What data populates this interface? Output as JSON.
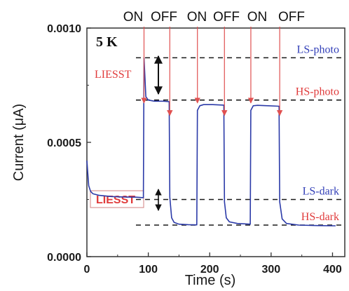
{
  "chart_data": {
    "type": "line",
    "xlabel": "Time (s)",
    "ylabel": "Current (μA)",
    "xlim": [
      0,
      420
    ],
    "ylim": [
      0.0,
      0.001
    ],
    "x_ticks": [
      0,
      100,
      200,
      300,
      400
    ],
    "y_ticks": [
      0.0,
      0.0005,
      0.001
    ],
    "x_tick_labels": [
      "0",
      "100",
      "200",
      "300",
      "400"
    ],
    "y_tick_labels": [
      "0.0000",
      "0.0005",
      "0.0010"
    ],
    "series": [
      {
        "color": "#2b3aa8",
        "points": [
          [
            0,
            0.00042
          ],
          [
            1,
            0.00038
          ],
          [
            3,
            0.00031
          ],
          [
            6,
            0.000285
          ],
          [
            10,
            0.000275
          ],
          [
            20,
            0.000268
          ],
          [
            40,
            0.000263
          ],
          [
            60,
            0.000261
          ],
          [
            80,
            0.00026
          ],
          [
            92,
            0.000258
          ],
          [
            93,
            0.00087
          ],
          [
            96,
            0.0007
          ],
          [
            100,
            0.000685
          ],
          [
            110,
            0.00068
          ],
          [
            125,
            0.00068
          ],
          [
            134,
            0.000678
          ],
          [
            135,
            0.00026
          ],
          [
            138,
            0.00017
          ],
          [
            142,
            0.00015
          ],
          [
            150,
            0.000142
          ],
          [
            165,
            0.00014
          ],
          [
            179,
            0.000139
          ],
          [
            180,
            0.00064
          ],
          [
            184,
            0.00066
          ],
          [
            190,
            0.000665
          ],
          [
            205,
            0.000665
          ],
          [
            223,
            0.000663
          ],
          [
            224,
            0.00024
          ],
          [
            227,
            0.00017
          ],
          [
            232,
            0.000152
          ],
          [
            245,
            0.000145
          ],
          [
            266,
            0.000142
          ],
          [
            267,
            0.00064
          ],
          [
            271,
            0.00066
          ],
          [
            278,
            0.000662
          ],
          [
            295,
            0.00066
          ],
          [
            313,
            0.000658
          ],
          [
            314,
            0.00024
          ],
          [
            318,
            0.000165
          ],
          [
            325,
            0.000145
          ],
          [
            345,
            0.000138
          ],
          [
            375,
            0.000136
          ],
          [
            400,
            0.000135
          ],
          [
            405,
            0.000135
          ]
        ]
      }
    ],
    "reference_levels": [
      {
        "label": "LS-photo",
        "y": 0.00087,
        "color": "#3340b8",
        "style": "dashed"
      },
      {
        "label": "HS-photo",
        "y": 0.000685,
        "color": "#e03a3a",
        "style": "dashed"
      },
      {
        "label": "LS-dark",
        "y": 0.00025,
        "color": "#3340b8",
        "style": "dashed"
      },
      {
        "label": "HS-dark",
        "y": 0.000138,
        "color": "#e03a3a",
        "style": "dashed"
      }
    ],
    "light_switch_events": [
      {
        "label": "ON",
        "x": 93
      },
      {
        "label": "OFF",
        "x": 135
      },
      {
        "label": "ON",
        "x": 180
      },
      {
        "label": "OFF",
        "x": 224
      },
      {
        "label": "ON",
        "x": 267
      },
      {
        "label": "OFF",
        "x": 314
      }
    ],
    "annotations": {
      "temperature": "5 K",
      "liesst_photo": "LIESST",
      "liesst_dark": "LIESST"
    },
    "grid": false,
    "legend": "none"
  },
  "colors": {
    "trace": "#2b3aa8",
    "ls_label": "#3340b8",
    "hs_label": "#e03a3a",
    "arrow_red": "#e05050",
    "reference_line": "#1a1a1a"
  }
}
